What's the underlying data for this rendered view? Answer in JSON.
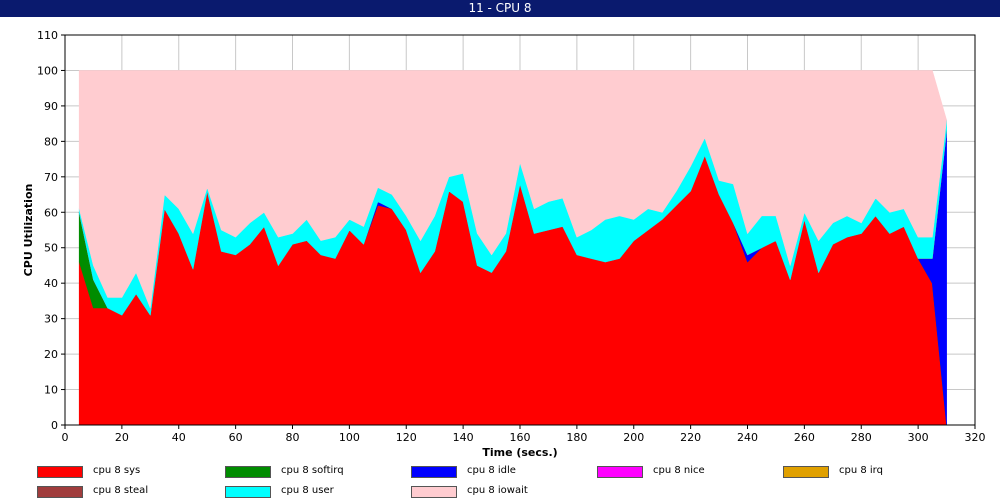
{
  "window": {
    "title": "11 - CPU 8"
  },
  "chart_data": {
    "type": "area",
    "stacked": true,
    "title": "11 - CPU 8",
    "xlabel": "Time (secs.)",
    "ylabel": "CPU Utilization",
    "xlim": [
      0,
      320
    ],
    "ylim": [
      0,
      110
    ],
    "xticks": [
      0,
      20,
      40,
      60,
      80,
      100,
      120,
      140,
      160,
      180,
      200,
      220,
      240,
      260,
      280,
      300,
      320
    ],
    "yticks": [
      0,
      10,
      20,
      30,
      40,
      50,
      60,
      70,
      80,
      90,
      100,
      110
    ],
    "grid": true,
    "legend_position": "bottom",
    "x": [
      5,
      10,
      15,
      20,
      25,
      30,
      35,
      40,
      45,
      50,
      55,
      60,
      65,
      70,
      75,
      80,
      85,
      90,
      95,
      100,
      105,
      110,
      115,
      120,
      125,
      130,
      135,
      140,
      145,
      150,
      155,
      160,
      165,
      170,
      175,
      180,
      185,
      190,
      195,
      200,
      205,
      210,
      215,
      220,
      225,
      230,
      235,
      240,
      245,
      250,
      255,
      260,
      265,
      270,
      275,
      280,
      285,
      290,
      295,
      300,
      305,
      310
    ],
    "series": [
      {
        "name": "cpu 8 sys",
        "color": "#ff0000",
        "values": [
          46,
          33,
          33,
          31,
          37,
          31,
          61,
          54,
          44,
          66,
          49,
          48,
          51,
          56,
          45,
          51,
          52,
          48,
          47,
          55,
          51,
          62,
          61,
          55,
          43,
          49,
          66,
          63,
          45,
          43,
          49,
          68,
          54,
          55,
          56,
          48,
          47,
          46,
          47,
          52,
          55,
          58,
          62,
          66,
          76,
          65,
          57,
          46,
          50,
          52,
          41,
          58,
          43,
          51,
          53,
          54,
          59,
          54,
          56,
          47,
          40,
          0
        ]
      },
      {
        "name": "cpu 8 softirq",
        "color": "#008c00",
        "values": [
          14,
          8,
          0,
          0,
          0,
          0,
          0,
          0,
          0,
          0,
          0,
          0,
          0,
          0,
          0,
          0,
          0,
          0,
          0,
          0,
          0,
          0,
          0,
          0,
          0,
          0,
          0,
          0,
          0,
          0,
          0,
          0,
          0,
          0,
          0,
          0,
          0,
          0,
          0,
          0,
          0,
          0,
          0,
          0,
          0,
          0,
          0,
          0,
          0,
          0,
          0,
          0,
          0,
          0,
          0,
          0,
          0,
          0,
          0,
          0,
          0,
          0
        ]
      },
      {
        "name": "cpu 8 idle",
        "color": "#0000ff",
        "values": [
          0,
          0,
          0,
          0,
          0,
          0,
          0,
          0,
          0,
          0,
          0,
          0,
          0,
          0,
          0,
          0,
          0,
          0,
          0,
          0,
          0,
          1,
          0,
          0,
          0,
          0,
          0,
          0,
          0,
          0,
          0,
          0,
          0,
          0,
          0,
          0,
          0,
          0,
          0,
          0,
          0,
          0,
          0,
          0,
          0,
          0,
          0,
          2,
          0,
          0,
          0,
          0,
          0,
          0,
          0,
          0,
          0,
          0,
          0,
          0,
          7,
          83
        ]
      },
      {
        "name": "cpu 8 nice",
        "color": "#ff00ff",
        "values": [
          0,
          0,
          0,
          0,
          0,
          0,
          0,
          0,
          0,
          0,
          0,
          0,
          0,
          0,
          0,
          0,
          0,
          0,
          0,
          0,
          0,
          0,
          0,
          0,
          0,
          0,
          0,
          0,
          0,
          0,
          0,
          0,
          0,
          0,
          0,
          0,
          0,
          0,
          0,
          0,
          0,
          0,
          0,
          0,
          0,
          0,
          0,
          0,
          0,
          0,
          0,
          0,
          0,
          0,
          0,
          0,
          0,
          0,
          0,
          0,
          0,
          0
        ]
      },
      {
        "name": "cpu 8 irq",
        "color": "#e0a000",
        "values": [
          0,
          0,
          0,
          0,
          0,
          0,
          0,
          0,
          0,
          0,
          0,
          0,
          0,
          0,
          0,
          0,
          0,
          0,
          0,
          0,
          0,
          0,
          0,
          0,
          0,
          0,
          0,
          0,
          0,
          0,
          0,
          0,
          0,
          0,
          0,
          0,
          0,
          0,
          0,
          0,
          0,
          0,
          0,
          0,
          0,
          0,
          0,
          0,
          0,
          0,
          0,
          0,
          0,
          0,
          0,
          0,
          0,
          0,
          0,
          0,
          0,
          0
        ]
      },
      {
        "name": "cpu 8 steal",
        "color": "#a03c3c",
        "values": [
          0,
          0,
          0,
          0,
          0,
          0,
          0,
          0,
          0,
          0,
          0,
          0,
          0,
          0,
          0,
          0,
          0,
          0,
          0,
          0,
          0,
          0,
          0,
          0,
          0,
          0,
          0,
          0,
          0,
          0,
          0,
          0,
          0,
          0,
          0,
          0,
          0,
          0,
          0,
          0,
          0,
          0,
          0,
          0,
          0,
          0,
          0,
          0,
          0,
          0,
          0,
          0,
          0,
          0,
          0,
          0,
          0,
          0,
          0,
          0,
          0,
          0
        ]
      },
      {
        "name": "cpu 8 user",
        "color": "#00ffff",
        "values": [
          1,
          4,
          3,
          5,
          6,
          2,
          4,
          7,
          10,
          1,
          6,
          5,
          6,
          4,
          8,
          3,
          6,
          4,
          6,
          3,
          5,
          4,
          4,
          4,
          9,
          10,
          4,
          8,
          9,
          5,
          5,
          6,
          7,
          8,
          8,
          5,
          8,
          12,
          12,
          6,
          6,
          2,
          4,
          7,
          5,
          4,
          11,
          6,
          9,
          7,
          4,
          2,
          9,
          6,
          6,
          3,
          5,
          6,
          5,
          6,
          6,
          3
        ]
      },
      {
        "name": "cpu 8 iowait",
        "color": "#ffccd0",
        "values": [
          39,
          55,
          64,
          64,
          57,
          67,
          35,
          39,
          46,
          33,
          45,
          47,
          43,
          40,
          47,
          46,
          42,
          48,
          47,
          42,
          44,
          33,
          35,
          41,
          48,
          41,
          30,
          29,
          46,
          52,
          46,
          26,
          39,
          37,
          36,
          47,
          45,
          42,
          41,
          42,
          39,
          40,
          34,
          27,
          19,
          31,
          32,
          46,
          41,
          41,
          55,
          40,
          48,
          43,
          41,
          43,
          36,
          40,
          39,
          47,
          47,
          0
        ]
      }
    ]
  }
}
